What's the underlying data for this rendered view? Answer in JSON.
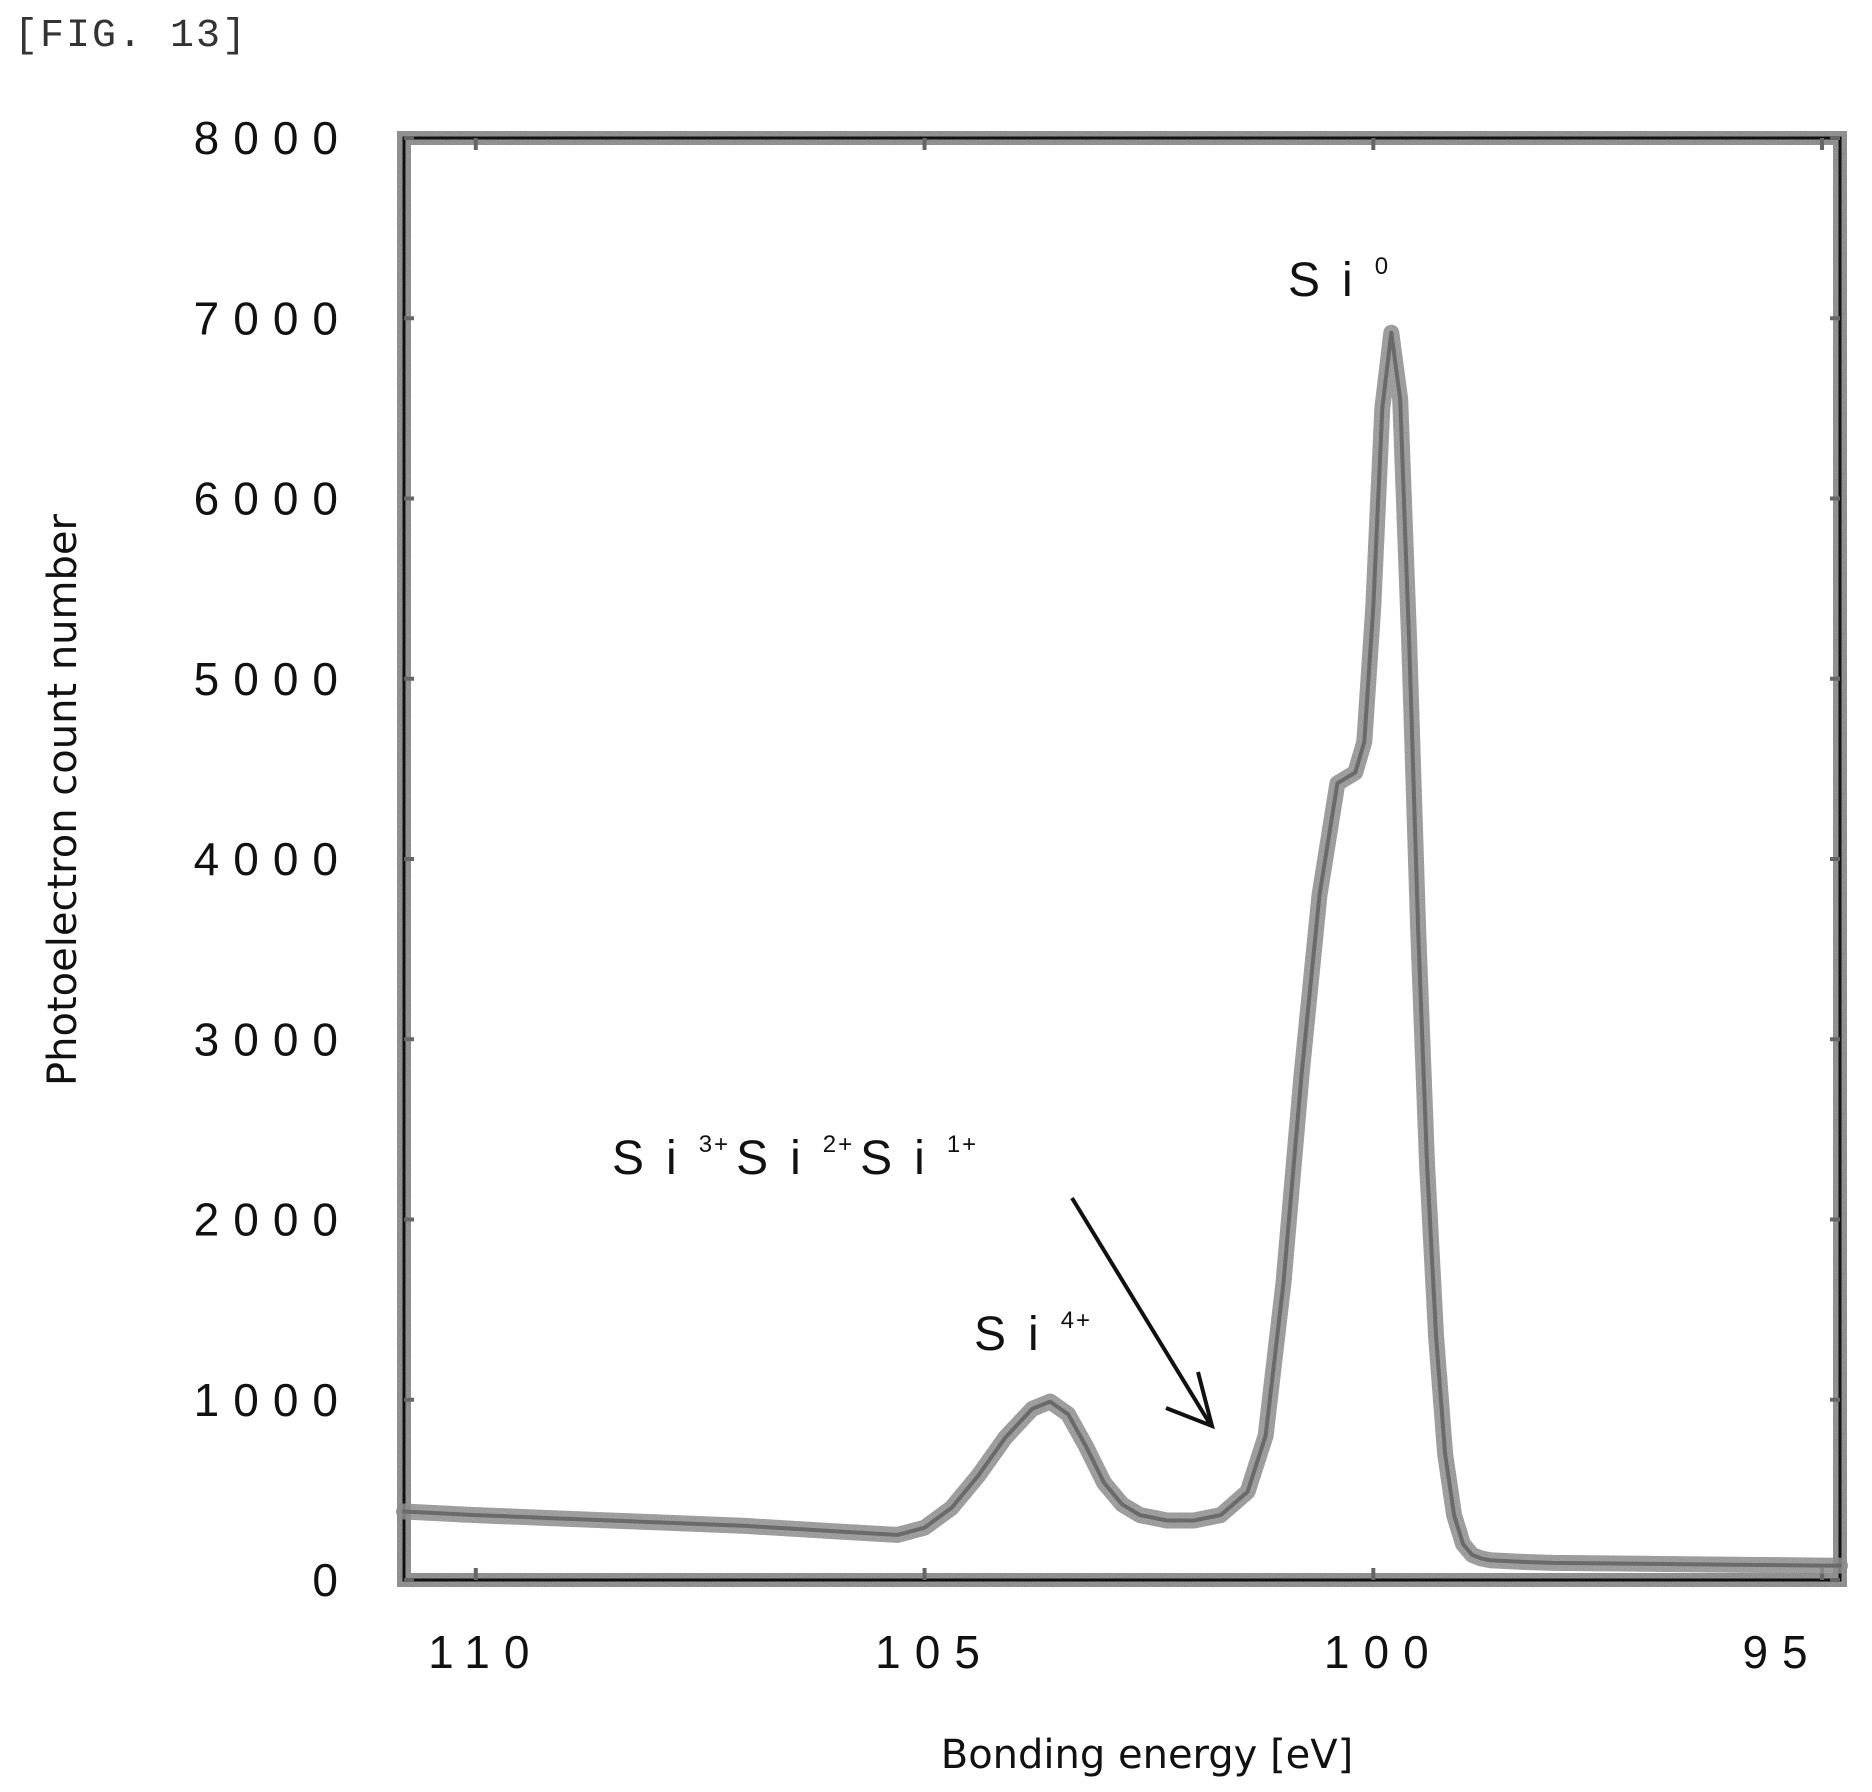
{
  "figure_label": "[FIG. 13]",
  "chart_data": {
    "type": "line",
    "title": "",
    "xlabel": "Bonding energy [eV]",
    "ylabel": "Photoelectron count number",
    "xlim": [
      110.8,
      94.8
    ],
    "ylim": [
      0,
      8000
    ],
    "x_reversed": true,
    "x_ticks": [
      110,
      105,
      100,
      95
    ],
    "x_tick_labels": [
      "110",
      "105",
      "100",
      "95"
    ],
    "y_ticks": [
      0,
      1000,
      2000,
      3000,
      4000,
      5000,
      6000,
      7000,
      8000
    ],
    "y_tick_labels": [
      "0",
      "1000",
      "2000",
      "3000",
      "4000",
      "5000",
      "6000",
      "7000",
      "8000"
    ],
    "grid": false,
    "series": [
      {
        "x": [
          110.8,
          110.0,
          109.0,
          108.0,
          107.0,
          106.0,
          105.3,
          105.0,
          104.7,
          104.4,
          104.1,
          103.8,
          103.6,
          103.4,
          103.2,
          103.0,
          102.8,
          102.6,
          102.3,
          102.0,
          101.7,
          101.4,
          101.2,
          101.0,
          100.8,
          100.6,
          100.4,
          100.2,
          100.1,
          100.0,
          99.9,
          99.8,
          99.7,
          99.6,
          99.5,
          99.4,
          99.3,
          99.2,
          99.1,
          99.0,
          98.9,
          98.8,
          98.7,
          98.5,
          98.3,
          98.0,
          97.0,
          96.0,
          95.0,
          94.8
        ],
        "y": [
          380,
          360,
          340,
          320,
          300,
          270,
          250,
          290,
          400,
          580,
          790,
          950,
          990,
          920,
          740,
          540,
          420,
          360,
          330,
          330,
          360,
          490,
          800,
          1650,
          2800,
          3800,
          4420,
          4480,
          4650,
          5400,
          6500,
          6920,
          6550,
          5200,
          3600,
          2300,
          1350,
          700,
          360,
          200,
          140,
          120,
          110,
          105,
          100,
          95,
          90,
          85,
          80,
          80
        ]
      }
    ],
    "annotations": [
      {
        "label": "Si",
        "sup": "0"
      },
      {
        "label": "Si",
        "sup": "4+"
      },
      {
        "label": "Si",
        "sup": "3+"
      },
      {
        "label": "Si",
        "sup": "2+"
      },
      {
        "label": "Si",
        "sup": "1+"
      }
    ]
  }
}
